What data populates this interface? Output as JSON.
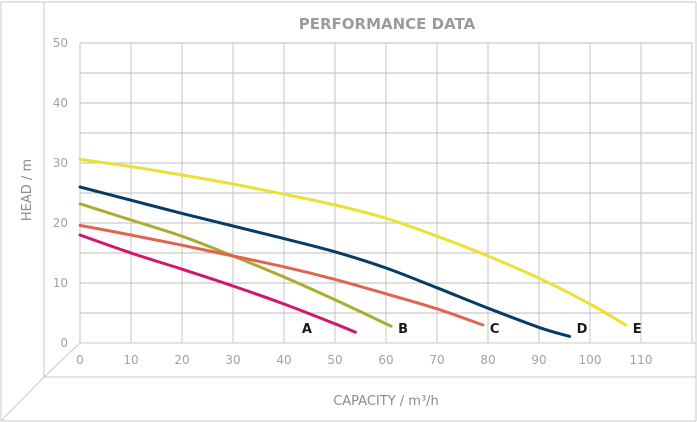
{
  "chart_data": {
    "type": "line",
    "title": "PERFORMANCE DATA",
    "xlabel": "CAPACITY / m³/h",
    "ylabel": "HEAD / m",
    "xlim": [
      0,
      120
    ],
    "ylim": [
      0,
      50
    ],
    "x_ticks": [
      "0",
      "10",
      "20",
      "30",
      "40",
      "50",
      "60",
      "70",
      "80",
      "90",
      "100",
      "110"
    ],
    "y_ticks": [
      "0",
      "10",
      "20",
      "30",
      "40",
      "50"
    ],
    "grid": true,
    "series": [
      {
        "name": "A",
        "color": "#d0176b",
        "points": [
          [
            0,
            18
          ],
          [
            10,
            15
          ],
          [
            20,
            12.3
          ],
          [
            30,
            9.5
          ],
          [
            40,
            6.5
          ],
          [
            50,
            3.2
          ],
          [
            54,
            1.8
          ]
        ]
      },
      {
        "name": "B",
        "color": "#a9ad31",
        "points": [
          [
            0,
            23.2
          ],
          [
            10,
            20.5
          ],
          [
            20,
            17.8
          ],
          [
            30,
            14.5
          ],
          [
            40,
            11
          ],
          [
            50,
            7.2
          ],
          [
            61,
            2.8
          ]
        ]
      },
      {
        "name": "C",
        "color": "#e16450",
        "points": [
          [
            0,
            19.6
          ],
          [
            10,
            18
          ],
          [
            20,
            16.3
          ],
          [
            30,
            14.5
          ],
          [
            40,
            12.7
          ],
          [
            50,
            10.6
          ],
          [
            60,
            8.2
          ],
          [
            70,
            5.7
          ],
          [
            79,
            3
          ]
        ]
      },
      {
        "name": "D",
        "color": "#073b63",
        "points": [
          [
            0,
            26
          ],
          [
            10,
            23.8
          ],
          [
            20,
            21.6
          ],
          [
            30,
            19.5
          ],
          [
            40,
            17.4
          ],
          [
            50,
            15.2
          ],
          [
            60,
            12.5
          ],
          [
            70,
            9.2
          ],
          [
            80,
            5.8
          ],
          [
            90,
            2.6
          ],
          [
            96,
            1.1
          ]
        ]
      },
      {
        "name": "E",
        "color": "#ece034",
        "points": [
          [
            0,
            30.6
          ],
          [
            10,
            29.4
          ],
          [
            20,
            28
          ],
          [
            30,
            26.5
          ],
          [
            40,
            24.8
          ],
          [
            50,
            23
          ],
          [
            60,
            20.8
          ],
          [
            70,
            17.8
          ],
          [
            80,
            14.5
          ],
          [
            90,
            10.8
          ],
          [
            100,
            6.5
          ],
          [
            107,
            3
          ]
        ]
      }
    ]
  }
}
